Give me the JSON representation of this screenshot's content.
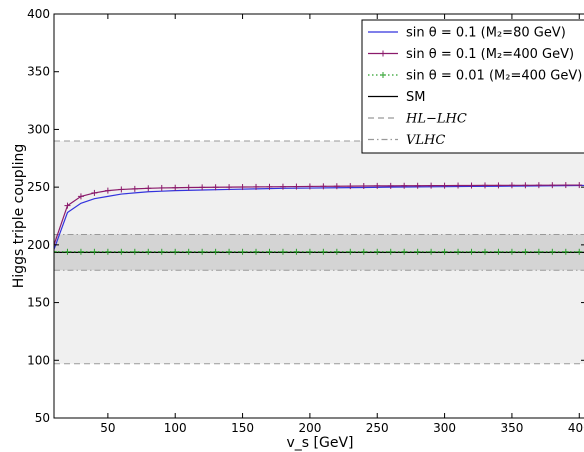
{
  "chart_data": {
    "type": "line",
    "xlabel": "v_s [GeV]",
    "ylabel": "Higgs triple coupling",
    "xlim": [
      10,
      405
    ],
    "ylim": [
      50,
      400
    ],
    "x_ticks": [
      50,
      100,
      150,
      200,
      250,
      300,
      350,
      400
    ],
    "y_ticks": [
      50,
      100,
      150,
      200,
      250,
      300,
      350,
      400
    ],
    "grid": false,
    "legend_position": "top-right",
    "bands": [
      {
        "name": "HL−LHC",
        "lower": 97,
        "upper": 290,
        "fill": "#f0f0f0",
        "line_color": "#999999",
        "line_style": "dashed"
      },
      {
        "name": "VLHC",
        "lower": 178,
        "upper": 209,
        "fill": "#d4d4d4",
        "line_color": "#999999",
        "line_style": "dashdot"
      }
    ],
    "series": [
      {
        "name": "sin θ = 0.1 (M₂=80 GeV)",
        "color": "#3333dd",
        "marker": "none",
        "x": [
          10,
          20,
          30,
          40,
          50,
          60,
          70,
          80,
          90,
          100,
          120,
          140,
          160,
          180,
          200,
          220,
          240,
          260,
          280,
          300,
          320,
          340,
          360,
          380,
          400,
          405
        ],
        "values": [
          196,
          228,
          236,
          240,
          242,
          244,
          245,
          246,
          246.5,
          247,
          247.5,
          248,
          248.5,
          249,
          249.2,
          249.5,
          249.7,
          250,
          250.2,
          250.4,
          250.6,
          250.8,
          251,
          251.2,
          251.4,
          251.5
        ]
      },
      {
        "name": "sin θ = 0.1 (M₂=400 GeV)",
        "color": "#8b1a6b",
        "marker": "plus",
        "x": [
          10,
          20,
          30,
          40,
          50,
          60,
          70,
          80,
          90,
          100,
          110,
          120,
          130,
          140,
          150,
          160,
          170,
          180,
          190,
          200,
          210,
          220,
          230,
          240,
          250,
          260,
          270,
          280,
          290,
          300,
          310,
          320,
          330,
          340,
          350,
          360,
          370,
          380,
          390,
          400
        ],
        "values": [
          200,
          234,
          242,
          245,
          247,
          248,
          248.5,
          249,
          249.3,
          249.5,
          249.7,
          249.8,
          249.9,
          250,
          250.1,
          250.2,
          250.3,
          250.4,
          250.5,
          250.6,
          250.7,
          250.8,
          250.9,
          251,
          251.1,
          251.1,
          251.2,
          251.2,
          251.3,
          251.3,
          251.4,
          251.4,
          251.5,
          251.5,
          251.6,
          251.6,
          251.7,
          251.7,
          251.8,
          251.8
        ]
      },
      {
        "name": "sin θ = 0.01 (M₂=400 GeV)",
        "color": "#2ca02c",
        "marker": "plus",
        "line_style": "dotted",
        "x": [
          10,
          20,
          30,
          40,
          50,
          60,
          70,
          80,
          90,
          100,
          110,
          120,
          130,
          140,
          150,
          160,
          170,
          180,
          190,
          200,
          210,
          220,
          230,
          240,
          250,
          260,
          270,
          280,
          290,
          300,
          310,
          320,
          330,
          340,
          350,
          360,
          370,
          380,
          390,
          400
        ],
        "values": [
          194,
          194,
          194,
          194,
          194,
          194,
          194,
          194,
          194,
          194,
          194,
          194,
          194,
          194,
          194,
          194,
          194,
          194,
          194,
          194,
          194,
          194,
          194,
          194,
          194,
          194,
          194,
          194,
          194,
          194,
          194,
          194,
          194,
          194,
          194,
          194,
          194,
          194,
          194,
          194
        ]
      },
      {
        "name": "SM",
        "color": "#000000",
        "marker": "none",
        "x": [
          10,
          405
        ],
        "values": [
          193.5,
          193.5
        ]
      }
    ],
    "legend": [
      {
        "label": "sin θ = 0.1 (M₂=80 GeV)",
        "color": "#3333dd",
        "style": "solid",
        "marker": "none"
      },
      {
        "label": "sin θ = 0.1 (M₂=400 GeV)",
        "color": "#8b1a6b",
        "style": "solid",
        "marker": "plus"
      },
      {
        "label": "sin θ = 0.01 (M₂=400 GeV)",
        "color": "#2ca02c",
        "style": "dotted",
        "marker": "plus"
      },
      {
        "label": "SM",
        "color": "#000000",
        "style": "solid",
        "marker": "none"
      },
      {
        "label": "HL−LHC",
        "color": "#999999",
        "style": "dashed",
        "marker": "none",
        "math": true
      },
      {
        "label": "VLHC",
        "color": "#999999",
        "style": "dashdot",
        "marker": "none",
        "math": true
      }
    ]
  }
}
